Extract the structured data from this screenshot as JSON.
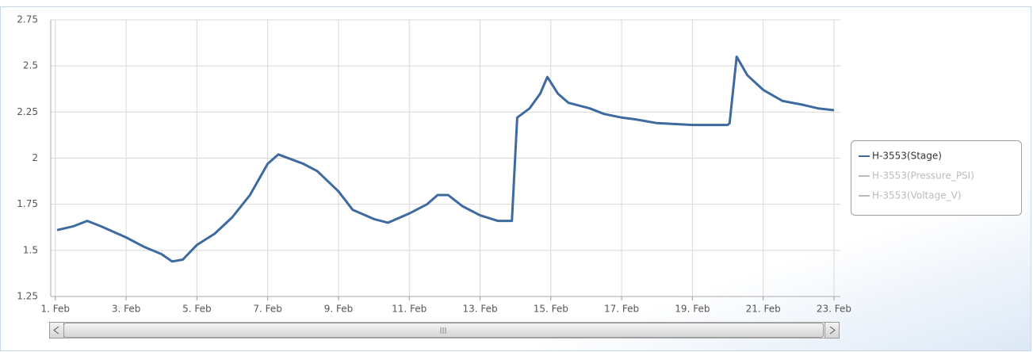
{
  "chart_data": {
    "type": "line",
    "x": [
      1.05,
      1.5,
      1.9,
      2.3,
      3.0,
      3.5,
      4.0,
      4.3,
      4.6,
      5.0,
      5.5,
      6.0,
      6.5,
      7.0,
      7.3,
      8.0,
      8.4,
      9.0,
      9.4,
      10.0,
      10.4,
      11.0,
      11.5,
      11.8,
      12.1,
      12.5,
      13.0,
      13.5,
      13.9,
      14.05,
      14.4,
      14.7,
      14.9,
      15.2,
      15.5,
      16.1,
      16.5,
      17.0,
      17.4,
      18.0,
      19.0,
      20.0,
      20.05,
      20.25,
      20.55,
      21.0,
      21.55,
      22.1,
      22.55,
      23.0
    ],
    "series": [
      {
        "name": "H-3553(Stage)",
        "color": "#3f6aa0",
        "values": [
          1.61,
          1.63,
          1.66,
          1.63,
          1.57,
          1.52,
          1.48,
          1.44,
          1.45,
          1.53,
          1.59,
          1.68,
          1.8,
          1.97,
          2.02,
          1.97,
          1.93,
          1.82,
          1.72,
          1.67,
          1.65,
          1.7,
          1.75,
          1.8,
          1.8,
          1.74,
          1.69,
          1.66,
          1.66,
          2.22,
          2.27,
          2.35,
          2.44,
          2.35,
          2.3,
          2.27,
          2.24,
          2.22,
          2.21,
          2.19,
          2.18,
          2.18,
          2.19,
          2.55,
          2.45,
          2.37,
          2.31,
          2.29,
          2.27,
          2.26
        ]
      },
      {
        "name": "H-3553(Pressure_PSI)",
        "color": "#bbbbbb",
        "visible": false
      },
      {
        "name": "H-3553(Voltage_V)",
        "color": "#bbbbbb",
        "visible": false
      }
    ],
    "xlim": [
      0.87,
      23.18
    ],
    "xticks": [
      {
        "value": 1,
        "label": "1. Feb"
      },
      {
        "value": 3,
        "label": "3. Feb"
      },
      {
        "value": 5,
        "label": "5. Feb"
      },
      {
        "value": 7,
        "label": "7. Feb"
      },
      {
        "value": 9,
        "label": "9. Feb"
      },
      {
        "value": 11,
        "label": "11. Feb"
      },
      {
        "value": 13,
        "label": "13. Feb"
      },
      {
        "value": 15,
        "label": "15. Feb"
      },
      {
        "value": 17,
        "label": "17. Feb"
      },
      {
        "value": 19,
        "label": "19. Feb"
      },
      {
        "value": 21,
        "label": "21. Feb"
      },
      {
        "value": 23,
        "label": "23. Feb"
      }
    ],
    "ylim": [
      1.25,
      2.75
    ],
    "yticks": [
      1.25,
      1.5,
      1.75,
      2,
      2.25,
      2.5,
      2.75
    ],
    "grid": true,
    "legend": "right"
  }
}
